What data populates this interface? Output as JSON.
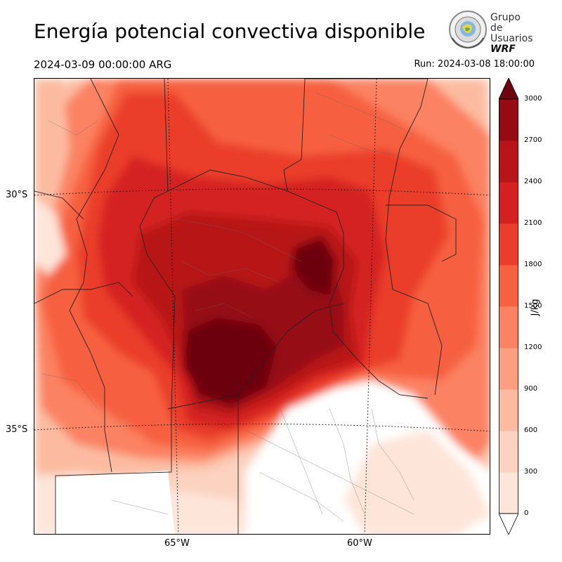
{
  "title": "Energía potencial convectiva disponible",
  "valid_time": "2024-03-09 00:00:00 ARG",
  "run_time": "Run: 2024-03-08 18:00:00",
  "logo": {
    "line1": "Grupo de",
    "line2": "Usuarios",
    "line3": "WRF"
  },
  "map": {
    "lat_labels": [
      "30°S",
      "35°S"
    ],
    "lon_labels": [
      "65°W",
      "60°W"
    ],
    "variable": "CAPE",
    "region": "Centro de Argentina"
  },
  "colorbar": {
    "unit": "J/kg",
    "ticks": [
      "0",
      "300",
      "600",
      "900",
      "1200",
      "1500",
      "1800",
      "2100",
      "2400",
      "2700",
      "3000"
    ],
    "colors": [
      "#fee5d9",
      "#fcd2c0",
      "#fcbba1",
      "#fc9f81",
      "#fb8262",
      "#f6613f",
      "#ea3d2c",
      "#d42020",
      "#b81419",
      "#960a14",
      "#6d0510"
    ],
    "extend": "both"
  }
}
